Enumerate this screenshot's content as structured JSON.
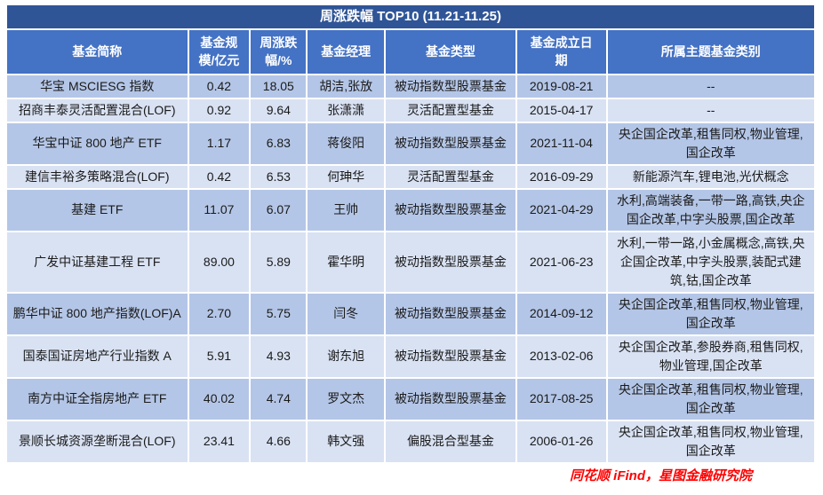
{
  "title": "周涨跌幅 TOP10 (11.21-11.25)",
  "columns": {
    "name": "基金简称",
    "scale": "基金规\n模/亿元",
    "change": "周涨跌\n幅/%",
    "manager": "基金经理",
    "type": "基金类型",
    "date": "基金成立日\n期",
    "theme": "所属主题基金类别"
  },
  "rows": [
    {
      "name": "华宝 MSCIESG 指数",
      "scale": "0.42",
      "change": "18.05",
      "manager": "胡洁,张放",
      "type": "被动指数型股票基金",
      "date": "2019-08-21",
      "theme": "--"
    },
    {
      "name": "招商丰泰灵活配置混合(LOF)",
      "scale": "0.92",
      "change": "9.64",
      "manager": "张潇潇",
      "type": "灵活配置型基金",
      "date": "2015-04-17",
      "theme": "--"
    },
    {
      "name": "华宝中证 800 地产 ETF",
      "scale": "1.17",
      "change": "6.83",
      "manager": "蒋俊阳",
      "type": "被动指数型股票基金",
      "date": "2021-11-04",
      "theme": "央企国企改革,租售同权,物业管理,国企改革"
    },
    {
      "name": "建信丰裕多策略混合(LOF)",
      "scale": "0.42",
      "change": "6.53",
      "manager": "何珅华",
      "type": "灵活配置型基金",
      "date": "2016-09-29",
      "theme": "新能源汽车,锂电池,光伏概念"
    },
    {
      "name": "基建 ETF",
      "scale": "11.07",
      "change": "6.07",
      "manager": "王帅",
      "type": "被动指数型股票基金",
      "date": "2021-04-29",
      "theme": "水利,高端装备,一带一路,高铁,央企国企改革,中字头股票,国企改革"
    },
    {
      "name": "广发中证基建工程 ETF",
      "scale": "89.00",
      "change": "5.89",
      "manager": "霍华明",
      "type": "被动指数型股票基金",
      "date": "2021-06-23",
      "theme": "水利,一带一路,小金属概念,高铁,央企国企改革,中字头股票,装配式建筑,钴,国企改革"
    },
    {
      "name": "鹏华中证 800 地产指数(LOF)A",
      "scale": "2.70",
      "change": "5.75",
      "manager": "闫冬",
      "type": "被动指数型股票基金",
      "date": "2014-09-12",
      "theme": "央企国企改革,租售同权,物业管理,国企改革"
    },
    {
      "name": "国泰国证房地产行业指数 A",
      "scale": "5.91",
      "change": "4.93",
      "manager": "谢东旭",
      "type": "被动指数型股票基金",
      "date": "2013-02-06",
      "theme": "央企国企改革,参股券商,租售同权,物业管理,国企改革"
    },
    {
      "name": "南方中证全指房地产 ETF",
      "scale": "40.02",
      "change": "4.74",
      "manager": "罗文杰",
      "type": "被动指数型股票基金",
      "date": "2017-08-25",
      "theme": "央企国企改革,租售同权,物业管理,国企改革"
    },
    {
      "name": "景顺长城资源垄断混合(LOF)",
      "scale": "23.41",
      "change": "4.66",
      "manager": "韩文强",
      "type": "偏股混合型基金",
      "date": "2006-01-26",
      "theme": "央企国企改革,租售同权,物业管理,国企改革"
    }
  ],
  "footer": "同花顺 iFind，星图金融研究院",
  "colors": {
    "title-bg": "#2F5597",
    "header-bg": "#4472C4",
    "row-odd": "#B4C6E7",
    "row-even": "#D9E2F3",
    "border": "#FFFFFF",
    "text": "#1a1a1a",
    "footer": "#FF0000"
  }
}
